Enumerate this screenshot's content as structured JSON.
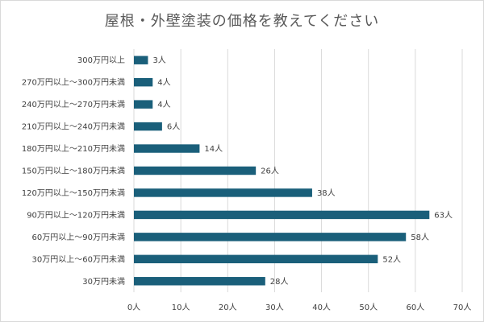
{
  "chart_data": {
    "type": "bar",
    "orientation": "horizontal",
    "title": "屋根・外壁塗装の価格を教えてください",
    "categories": [
      "300万円以上",
      "270万円以上～300万円未満",
      "240万円以上～270万円未満",
      "210万円以上～240万円未満",
      "180万円以上～210万円未満",
      "150万円以上～180万円未満",
      "120万円以上～150万円未満",
      "90万円以上～120万円未満",
      "60万円以上～90万円未満",
      "30万円以上～60万円未満",
      "30万円未満"
    ],
    "values": [
      3,
      4,
      4,
      6,
      14,
      26,
      38,
      63,
      58,
      52,
      28
    ],
    "value_suffix": "人",
    "xlim": [
      0,
      70
    ],
    "xticks": [
      "0人",
      "10人",
      "20人",
      "30人",
      "40人",
      "50人",
      "60人",
      "70人"
    ],
    "grid": true,
    "legend": "none",
    "bar_color": "#1a5f7a"
  }
}
